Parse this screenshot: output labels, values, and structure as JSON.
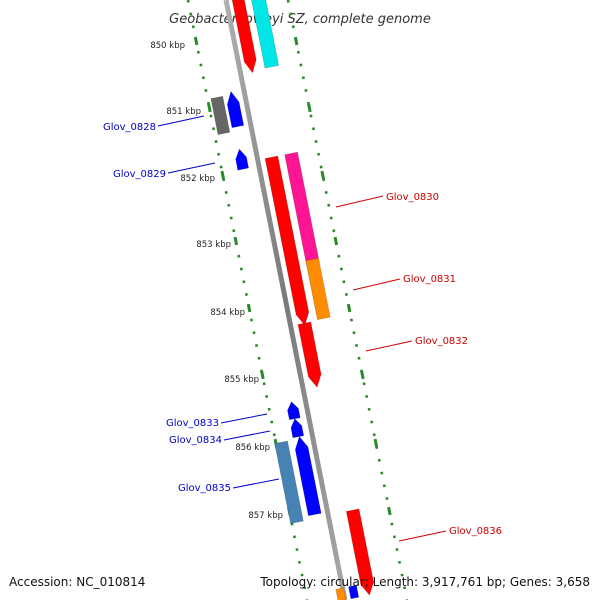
{
  "map": {
    "title": "Geobacter lovleyi SZ, complete genome",
    "accession_text": "Accession: NC_010814",
    "summary_text": "Topology: circular; Length: 3,917,761 bp; Genes: 3,658",
    "kbp_labels": [
      "850 kbp",
      "851 kbp",
      "852 kbp",
      "853 kbp",
      "854 kbp",
      "855 kbp",
      "856 kbp",
      "857 kbp"
    ],
    "gene_labels": {
      "glov_0828": "Glov_0828",
      "glov_0829": "Glov_0829",
      "glov_0830": "Glov_0830",
      "glov_0831": "Glov_0831",
      "glov_0832": "Glov_0832",
      "glov_0833": "Glov_0833",
      "glov_0834": "Glov_0834",
      "glov_0835": "Glov_0835",
      "glov_0836": "Glov_0836"
    }
  },
  "colors": {
    "backbone": "#8c8c8c",
    "tick": "#2a8a2a",
    "forward_label": "#cc0000",
    "reverse_label": "#0000cc",
    "cds_forward": "#ff0000",
    "cds_reverse": "#0000ff",
    "feature_cyan": "#00e5e5",
    "feature_pink": "#ff1493",
    "feature_orange": "#ff8c00",
    "feature_gray": "#666666",
    "feature_steelblue": "#4682b4"
  }
}
